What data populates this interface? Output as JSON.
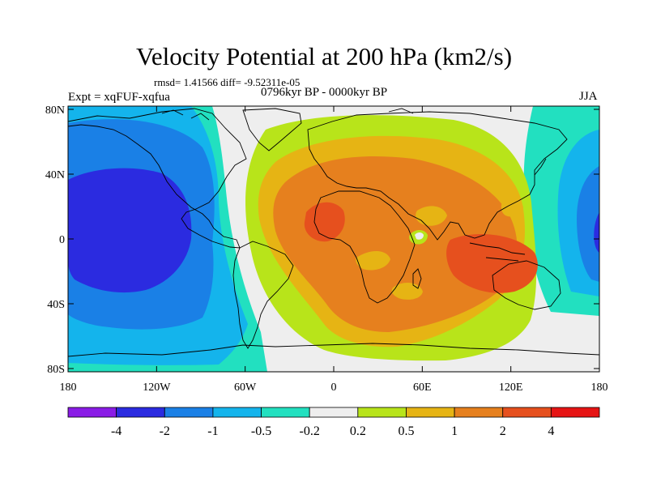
{
  "title": "Velocity Potential at 200 hPa (km2/s)",
  "stats_text": "rmsd= 1.41566 diff= -9.52311e-05",
  "experiment": "Expt = xqFUF-xqfua",
  "period": "0796kyr BP - 0000kyr BP",
  "season": "JJA",
  "axes": {
    "lat_labels": [
      "80N",
      "40N",
      "0",
      "40S",
      "80S"
    ],
    "lat_values": [
      80,
      40,
      0,
      -40,
      -80
    ],
    "lon_labels": [
      "180",
      "120W",
      "60W",
      "0",
      "60E",
      "120E",
      "180"
    ],
    "lon_values": [
      -180,
      -120,
      -60,
      0,
      60,
      120,
      180
    ]
  },
  "colorbar": {
    "labels": [
      "-4",
      "-2",
      "-1",
      "-0.5",
      "-0.2",
      "0.2",
      "0.5",
      "1",
      "2",
      "4"
    ],
    "colors": [
      "#8a1ce6",
      "#2b2be0",
      "#1a80e6",
      "#14b4ec",
      "#22e0c0",
      "#eeeeee",
      "#b8e41a",
      "#e6b414",
      "#e6801e",
      "#e6501e",
      "#e61414"
    ]
  }
}
